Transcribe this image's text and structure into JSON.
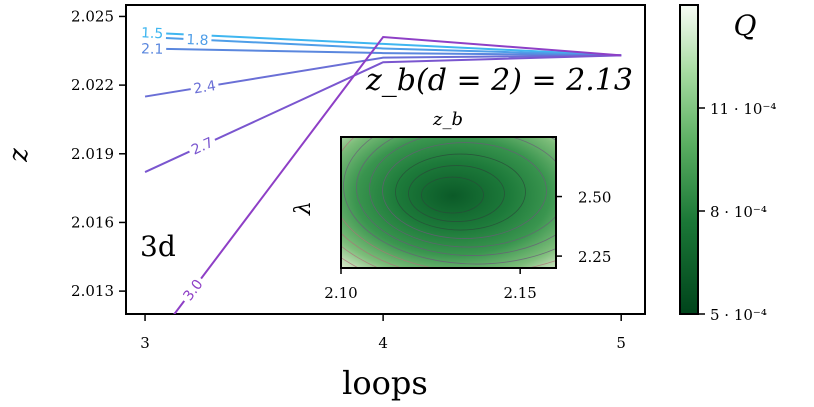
{
  "chart_data": [
    {
      "type": "line",
      "x": [
        3,
        4,
        5
      ],
      "xlabel": "loops",
      "ylabel": "z",
      "xlim": [
        2.92,
        5.1
      ],
      "ylim": [
        2.012,
        2.0255
      ],
      "x_ticks": [
        3,
        4,
        5
      ],
      "y_ticks": [
        2.013,
        2.016,
        2.019,
        2.022,
        2.025
      ],
      "y_tick_labels": [
        "2.013",
        "2.016",
        "2.019",
        "2.022",
        "2.025"
      ],
      "annotation_3d": "3d",
      "annotation_result": "z_b(d = 2) = 2.13",
      "series": [
        {
          "name": "1.5",
          "values": [
            2.0243,
            2.0238,
            2.0233
          ],
          "color": "#3fb6f0"
        },
        {
          "name": "1.8",
          "values": [
            2.0241,
            2.0236,
            2.0233
          ],
          "color": "#4f9ee8"
        },
        {
          "name": "2.1",
          "values": [
            2.0236,
            2.0234,
            2.0233
          ],
          "color": "#5a87de"
        },
        {
          "name": "2.4",
          "values": [
            2.0215,
            2.0232,
            2.0233
          ],
          "color": "#6a6fd6"
        },
        {
          "name": "2.7",
          "values": [
            2.0182,
            2.023,
            2.0233
          ],
          "color": "#7a56cf"
        },
        {
          "name": "3.0",
          "values": [
            2.0103,
            2.0241,
            2.0233
          ],
          "color": "#8e3fc6"
        }
      ]
    },
    {
      "type": "heatmap",
      "xlabel": "z_b",
      "ylabel": "λ",
      "xlim": [
        2.1,
        2.16
      ],
      "ylim": [
        2.2,
        2.75
      ],
      "x_ticks": [
        2.1,
        2.15
      ],
      "x_tick_labels": [
        "2.10",
        "2.15"
      ],
      "y_ticks": [
        2.25,
        2.5
      ],
      "y_tick_labels": [
        "2.25",
        "2.50"
      ],
      "minimum": {
        "z_b": 2.13,
        "lambda": 2.5
      }
    }
  ],
  "colorbar": {
    "label": "Q",
    "ticks": [
      {
        "value": 5,
        "label": "5 · 10⁻⁴"
      },
      {
        "value": 8,
        "label": "8 · 10⁻⁴"
      },
      {
        "value": 11,
        "label": "11 · 10⁻⁴"
      }
    ],
    "range": [
      5,
      14
    ],
    "colors": [
      "#00441b",
      "#1b7837",
      "#5aae61",
      "#a6dba0",
      "#f7fcf5"
    ]
  }
}
